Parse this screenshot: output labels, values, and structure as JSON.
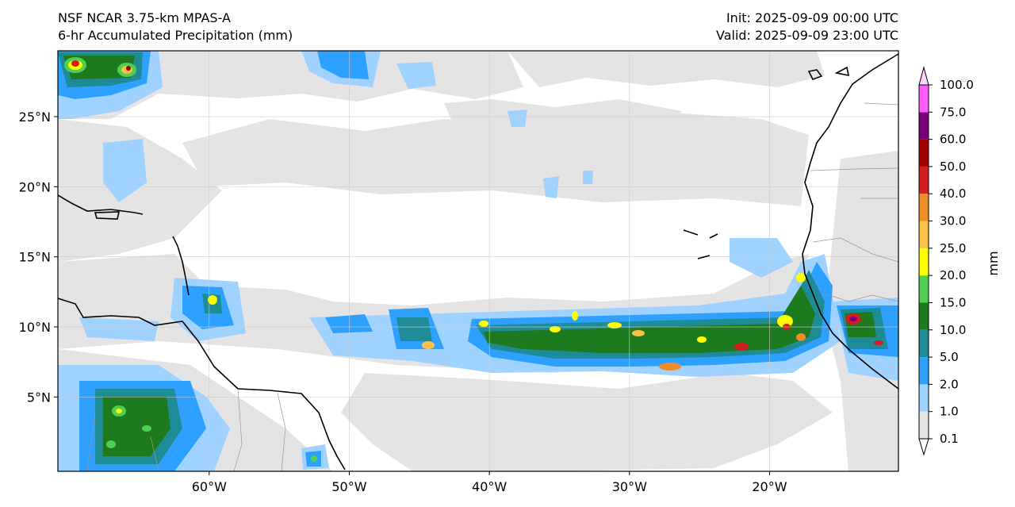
{
  "header": {
    "model": "NSF NCAR 3.75-km MPAS-A",
    "field": "6-hr Accumulated Precipitation (mm)",
    "init": "Init: 2025-09-09 00:00 UTC",
    "valid": "Valid: 2025-09-09 23:00 UTC"
  },
  "map": {
    "lon_range": [
      -70.8,
      -10.8
    ],
    "lat_range": [
      -0.3,
      29.7
    ],
    "lon_ticks": [
      {
        "value": -60,
        "label": "60°W"
      },
      {
        "value": -50,
        "label": "50°W"
      },
      {
        "value": -40,
        "label": "40°W"
      },
      {
        "value": -30,
        "label": "30°W"
      },
      {
        "value": -20,
        "label": "20°W"
      }
    ],
    "lat_ticks": [
      {
        "value": 5,
        "label": "5°N"
      },
      {
        "value": 10,
        "label": "10°N"
      },
      {
        "value": 15,
        "label": "15°N"
      },
      {
        "value": 20,
        "label": "20°N"
      },
      {
        "value": 25,
        "label": "25°N"
      }
    ],
    "gridlines": true
  },
  "colorbar": {
    "unit_label": "mm",
    "levels": [
      "0.1",
      "1.0",
      "2.0",
      "5.0",
      "10.0",
      "15.0",
      "20.0",
      "25.0",
      "30.0",
      "40.0",
      "50.0",
      "60.0",
      "75.0",
      "100.0"
    ],
    "colors": [
      "#e4e4e4",
      "#a0d2ff",
      "#2ea0ff",
      "#1e8c96",
      "#1e7a1e",
      "#50d050",
      "#ffff00",
      "#fbc04a",
      "#f08c28",
      "#d21e1e",
      "#a00000",
      "#7a007a",
      "#ff5cff"
    ]
  }
}
